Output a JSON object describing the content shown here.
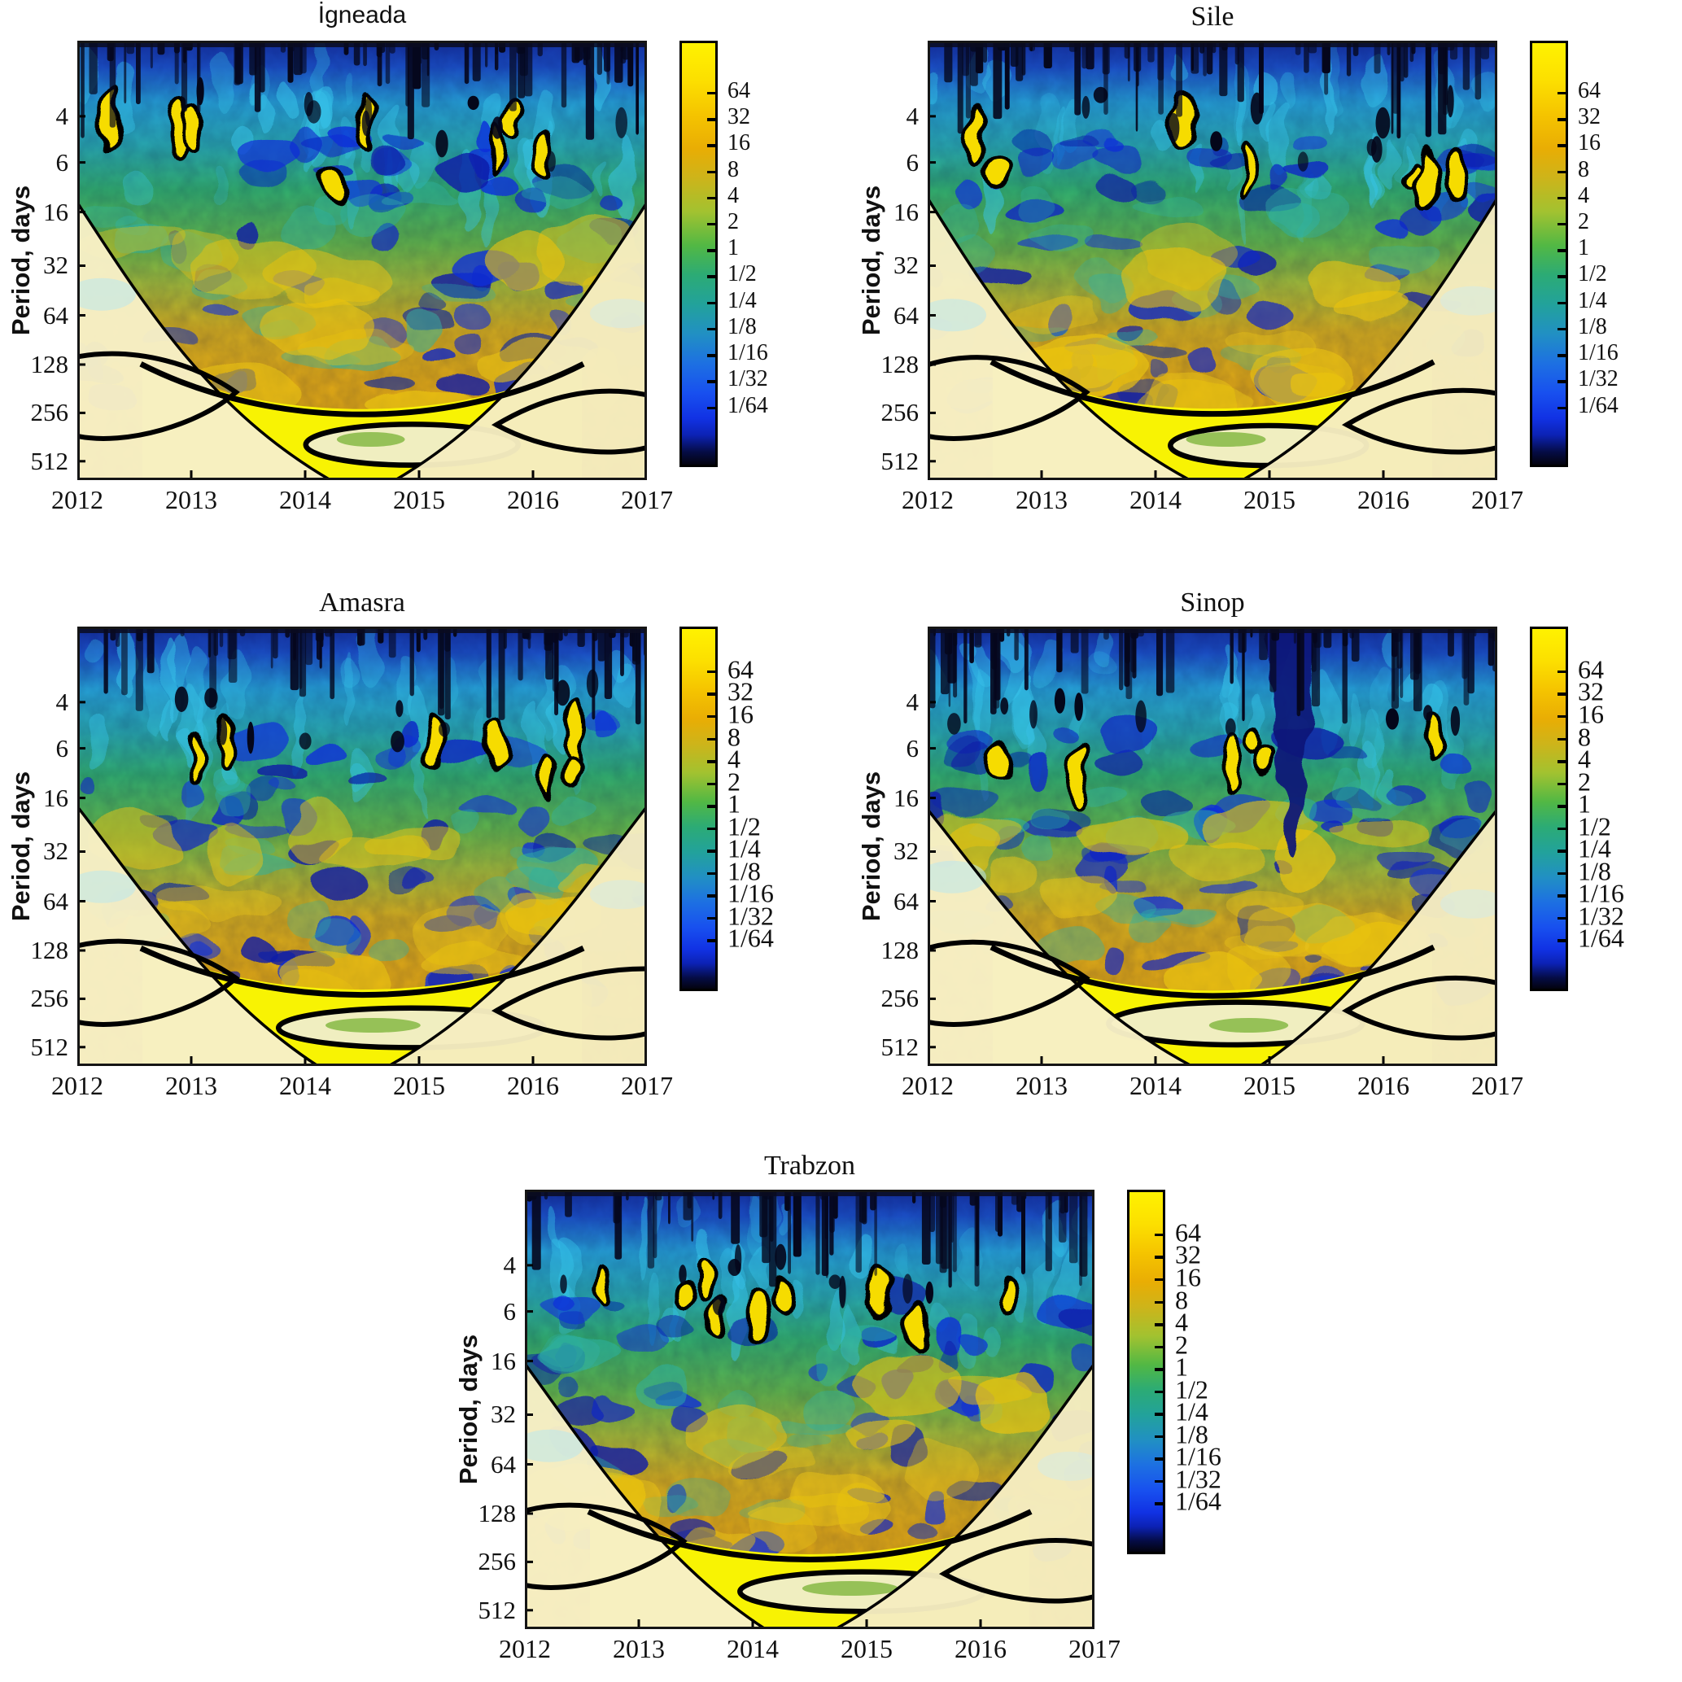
{
  "figure": {
    "description": "Wavelet power spectra of daily series at five Black Sea coastal stations; cone of influence and 95% significance contours shown in black.",
    "axes": {
      "ylabel": "Period, days",
      "yticks": [
        "4",
        "6",
        "16",
        "32",
        "64",
        "128",
        "256",
        "512"
      ],
      "xticks": [
        "2012",
        "2013",
        "2014",
        "2015",
        "2016",
        "2017"
      ]
    },
    "colorbar": {
      "ticks": [
        "64",
        "32",
        "16",
        "8",
        "4",
        "2",
        "1",
        "1/2",
        "1/4",
        "1/8",
        "1/16",
        "1/32",
        "1/64"
      ],
      "top_color": "#fff200",
      "mid_color": "#2cab75",
      "bottom_color": "#03030f",
      "palette": "yellow (high power) - orange - green - teal - blue (low power) - black"
    },
    "panels": [
      {
        "id": "igneada",
        "title": "İgneada",
        "serif_title": false,
        "row": 1,
        "seed": 7,
        "sig": 8,
        "plume": 0
      },
      {
        "id": "sile",
        "title": "Sile",
        "serif_title": true,
        "row": 1,
        "seed": 23,
        "sig": 8,
        "plume": 0
      },
      {
        "id": "amasra",
        "title": "Amasra",
        "serif_title": true,
        "row": 2,
        "seed": 41,
        "sig": 7,
        "plume": 0
      },
      {
        "id": "sinop",
        "title": "Sinop",
        "serif_title": true,
        "row": 2,
        "seed": 59,
        "sig": 6,
        "plume": 0.64
      },
      {
        "id": "trabzon",
        "title": "Trabzon",
        "serif_title": true,
        "row": 3,
        "seed": 77,
        "sig": 9,
        "plume": 0
      }
    ]
  },
  "chart_data": [
    {
      "type": "heatmap",
      "subtype": "wavelet-power-spectrum",
      "title": "İgneada",
      "xlabel": "",
      "ylabel": "Period, days",
      "x_ticks": [
        2012,
        2013,
        2014,
        2015,
        2016,
        2017
      ],
      "x_range": [
        2012,
        2017
      ],
      "y_ticks_days": [
        4,
        6,
        16,
        32,
        64,
        128,
        256,
        512
      ],
      "y_scale": "log2, period increases downward",
      "colorbar_ticks": [
        "64",
        "32",
        "16",
        "8",
        "4",
        "2",
        "1",
        "1/2",
        "1/4",
        "1/8",
        "1/16",
        "1/32",
        "1/64"
      ],
      "legend_position": "right colorbar",
      "grid": false,
      "features": [
        "low power (blue/black streaks) at periods < 6 days across all years",
        "isolated significant yellow cells (black contours) at 6-16 day periods during 2013-2015",
        "broad high power (orange/gold) at 64-512 day periods for 2012-2017",
        "bright yellow significant band near 256-512 days centered on 2014-2015 bounded by thick black contour",
        "cone of influence excludes pale lower corners; lens-shaped contour at ~512 days around 2014-2015"
      ]
    },
    {
      "type": "heatmap",
      "subtype": "wavelet-power-spectrum",
      "title": "Sile",
      "xlabel": "",
      "ylabel": "Period, days",
      "x_ticks": [
        2012,
        2013,
        2014,
        2015,
        2016,
        2017
      ],
      "x_range": [
        2012,
        2017
      ],
      "y_ticks_days": [
        4,
        6,
        16,
        32,
        64,
        128,
        256,
        512
      ],
      "y_scale": "log2, period increases downward",
      "colorbar_ticks": [
        "64",
        "32",
        "16",
        "8",
        "4",
        "2",
        "1",
        "1/2",
        "1/4",
        "1/8",
        "1/16",
        "1/32",
        "1/64"
      ],
      "legend_position": "right colorbar",
      "grid": false,
      "features": [
        "dense black/blue streaking at periods < 6 days",
        "significant yellow cells with black outlines near 8-16 day periods in 2012-2016",
        "annual-scale high power (orange) at 128-512 days",
        "bright yellow significant region near 256-512 days around 2013.5-2015.5",
        "lens-shaped black contour at ~512 days spanning 2014.5-2016"
      ]
    },
    {
      "type": "heatmap",
      "subtype": "wavelet-power-spectrum",
      "title": "Amasra",
      "xlabel": "",
      "ylabel": "Period, days",
      "x_ticks": [
        2012,
        2013,
        2014,
        2015,
        2016,
        2017
      ],
      "x_range": [
        2012,
        2017
      ],
      "y_ticks_days": [
        4,
        6,
        16,
        32,
        64,
        128,
        256,
        512
      ],
      "y_scale": "log2, period increases downward",
      "colorbar_ticks": [
        "64",
        "32",
        "16",
        "8",
        "4",
        "2",
        "1",
        "1/2",
        "1/4",
        "1/8",
        "1/16",
        "1/32",
        "1/64"
      ],
      "legend_position": "right colorbar",
      "grid": false,
      "features": [
        "blue low-power field with black streaks above 6-day period",
        "several significant yellow drops with black contours at 8-16 days (2013-2016)",
        "orange high power over 64-512 day band",
        "bright yellow significant area near 256-512 days centered ~2014.5",
        "cone of influence with pale corners and bottom lens contour"
      ]
    },
    {
      "type": "heatmap",
      "subtype": "wavelet-power-spectrum",
      "title": "Sinop",
      "xlabel": "",
      "ylabel": "Period, days",
      "x_ticks": [
        2012,
        2013,
        2014,
        2015,
        2016,
        2017
      ],
      "x_range": [
        2012,
        2017
      ],
      "y_ticks_days": [
        4,
        6,
        16,
        32,
        64,
        128,
        256,
        512
      ],
      "y_scale": "log2, period increases downward",
      "colorbar_ticks": [
        "64",
        "32",
        "16",
        "8",
        "4",
        "2",
        "1",
        "1/2",
        "1/4",
        "1/8",
        "1/16",
        "1/32",
        "1/64"
      ],
      "legend_position": "right colorbar",
      "grid": false,
      "features": [
        "distinct dark-navy low-power plume at ~2015.2 reaching from short periods down to ~32-64 days",
        "significant yellow cells at 8-16 days during 2013-2015",
        "orange high power at 64-512 days, strongest 2013-2016",
        "bright yellow significant band near 256-512 days bounded by thick black contour",
        "cone of influence with pale corners"
      ]
    },
    {
      "type": "heatmap",
      "subtype": "wavelet-power-spectrum",
      "title": "Trabzon",
      "xlabel": "",
      "ylabel": "Period, days",
      "x_ticks": [
        2012,
        2013,
        2014,
        2015,
        2016,
        2017
      ],
      "x_range": [
        2012,
        2017
      ],
      "y_ticks_days": [
        4,
        6,
        16,
        32,
        64,
        128,
        256,
        512
      ],
      "y_scale": "log2, period increases downward",
      "colorbar_ticks": [
        "64",
        "32",
        "16",
        "8",
        "4",
        "2",
        "1",
        "1/2",
        "1/4",
        "1/8",
        "1/16",
        "1/32",
        "1/64"
      ],
      "legend_position": "right colorbar",
      "grid": false,
      "features": [
        "numerous strong significant yellow patches with black contours at 6-16 day periods in 2013-2016",
        "black/blue streaked low power above 6 days",
        "orange high power over 64-512 day band",
        "bright yellow significant region near 256-512 days around 2014-2015",
        "cone of influence with pale corners and lens contour near 512 days"
      ]
    }
  ]
}
